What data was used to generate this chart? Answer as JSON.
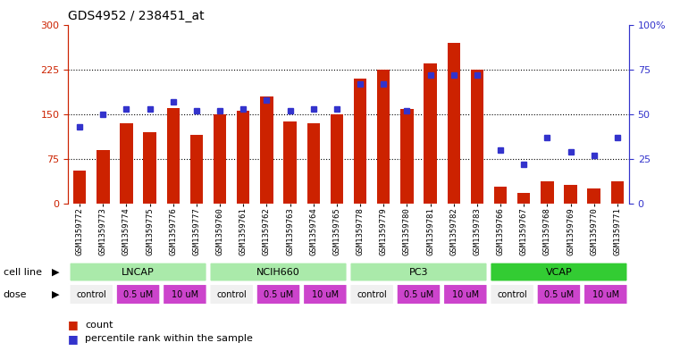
{
  "title": "GDS4952 / 238451_at",
  "samples": [
    "GSM1359772",
    "GSM1359773",
    "GSM1359774",
    "GSM1359775",
    "GSM1359776",
    "GSM1359777",
    "GSM1359760",
    "GSM1359761",
    "GSM1359762",
    "GSM1359763",
    "GSM1359764",
    "GSM1359765",
    "GSM1359778",
    "GSM1359779",
    "GSM1359780",
    "GSM1359781",
    "GSM1359782",
    "GSM1359783",
    "GSM1359766",
    "GSM1359767",
    "GSM1359768",
    "GSM1359769",
    "GSM1359770",
    "GSM1359771"
  ],
  "counts": [
    55,
    90,
    135,
    120,
    160,
    115,
    150,
    155,
    180,
    138,
    135,
    150,
    210,
    225,
    158,
    235,
    270,
    225,
    28,
    18,
    38,
    32,
    25,
    38
  ],
  "percentiles": [
    43,
    50,
    53,
    53,
    57,
    52,
    52,
    53,
    58,
    52,
    53,
    53,
    67,
    67,
    52,
    72,
    72,
    72,
    30,
    22,
    37,
    29,
    27,
    37
  ],
  "bar_color": "#CC2200",
  "dot_color": "#3333CC",
  "ylim_left": [
    0,
    300
  ],
  "ylim_right": [
    0,
    100
  ],
  "yticks_left": [
    0,
    75,
    150,
    225,
    300
  ],
  "yticks_right": [
    0,
    25,
    50,
    75,
    100
  ],
  "ytick_labels_right": [
    "0",
    "25",
    "50",
    "75",
    "100%"
  ],
  "hlines": [
    75,
    150,
    225
  ],
  "background_color": "#ffffff",
  "title_fontsize": 10,
  "cell_line_label": "cell line",
  "dose_label": "dose",
  "legend_count": "count",
  "legend_percentile": "percentile rank within the sample",
  "cell_line_groups": [
    {
      "name": "LNCAP",
      "start": 0,
      "end": 6,
      "color": "#aaeaaa"
    },
    {
      "name": "NCIH660",
      "start": 6,
      "end": 12,
      "color": "#aaeaaa"
    },
    {
      "name": "PC3",
      "start": 12,
      "end": 18,
      "color": "#aaeaaa"
    },
    {
      "name": "VCAP",
      "start": 18,
      "end": 24,
      "color": "#33cc33"
    }
  ],
  "dose_groups": [
    {
      "name": "control",
      "start": 0,
      "end": 2,
      "color": "#f0f0f0"
    },
    {
      "name": "0.5 uM",
      "start": 2,
      "end": 4,
      "color": "#cc44cc"
    },
    {
      "name": "10 uM",
      "start": 4,
      "end": 6,
      "color": "#cc44cc"
    },
    {
      "name": "control",
      "start": 6,
      "end": 8,
      "color": "#f0f0f0"
    },
    {
      "name": "0.5 uM",
      "start": 8,
      "end": 10,
      "color": "#cc44cc"
    },
    {
      "name": "10 uM",
      "start": 10,
      "end": 12,
      "color": "#cc44cc"
    },
    {
      "name": "control",
      "start": 12,
      "end": 14,
      "color": "#f0f0f0"
    },
    {
      "name": "0.5 uM",
      "start": 14,
      "end": 16,
      "color": "#cc44cc"
    },
    {
      "name": "10 uM",
      "start": 16,
      "end": 18,
      "color": "#cc44cc"
    },
    {
      "name": "control",
      "start": 18,
      "end": 20,
      "color": "#f0f0f0"
    },
    {
      "name": "0.5 uM",
      "start": 20,
      "end": 22,
      "color": "#cc44cc"
    },
    {
      "name": "10 uM",
      "start": 22,
      "end": 24,
      "color": "#cc44cc"
    }
  ]
}
